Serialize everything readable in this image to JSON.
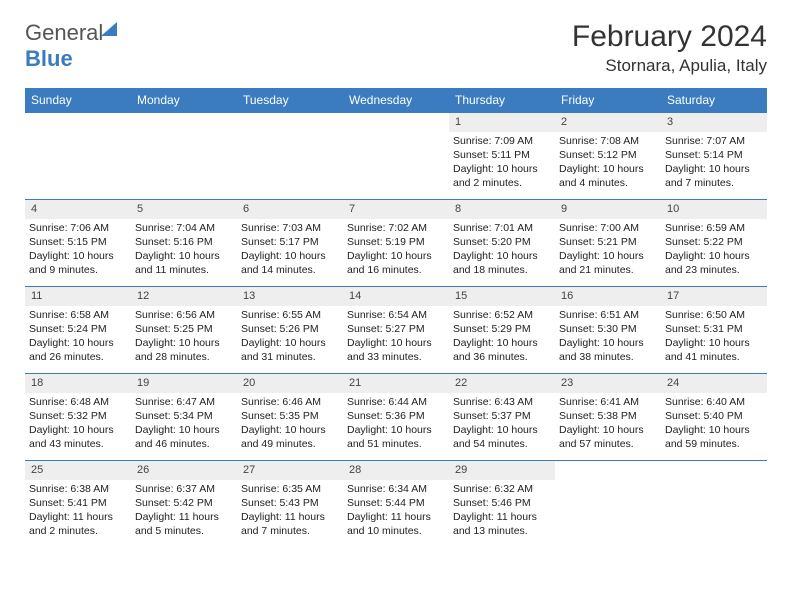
{
  "logo": {
    "text1": "General",
    "text2": "Blue"
  },
  "title": "February 2024",
  "location": "Stornara, Apulia, Italy",
  "colors": {
    "header_bg": "#3b7bbf",
    "header_text": "#ffffff",
    "row_border": "#3b7bbf",
    "daynum_bg": "#eeeeee",
    "body_text": "#222222"
  },
  "weekdays": [
    "Sunday",
    "Monday",
    "Tuesday",
    "Wednesday",
    "Thursday",
    "Friday",
    "Saturday"
  ],
  "weeks": [
    [
      null,
      null,
      null,
      null,
      {
        "n": "1",
        "sunrise": "7:09 AM",
        "sunset": "5:11 PM",
        "daylight": "10 hours and 2 minutes."
      },
      {
        "n": "2",
        "sunrise": "7:08 AM",
        "sunset": "5:12 PM",
        "daylight": "10 hours and 4 minutes."
      },
      {
        "n": "3",
        "sunrise": "7:07 AM",
        "sunset": "5:14 PM",
        "daylight": "10 hours and 7 minutes."
      }
    ],
    [
      {
        "n": "4",
        "sunrise": "7:06 AM",
        "sunset": "5:15 PM",
        "daylight": "10 hours and 9 minutes."
      },
      {
        "n": "5",
        "sunrise": "7:04 AM",
        "sunset": "5:16 PM",
        "daylight": "10 hours and 11 minutes."
      },
      {
        "n": "6",
        "sunrise": "7:03 AM",
        "sunset": "5:17 PM",
        "daylight": "10 hours and 14 minutes."
      },
      {
        "n": "7",
        "sunrise": "7:02 AM",
        "sunset": "5:19 PM",
        "daylight": "10 hours and 16 minutes."
      },
      {
        "n": "8",
        "sunrise": "7:01 AM",
        "sunset": "5:20 PM",
        "daylight": "10 hours and 18 minutes."
      },
      {
        "n": "9",
        "sunrise": "7:00 AM",
        "sunset": "5:21 PM",
        "daylight": "10 hours and 21 minutes."
      },
      {
        "n": "10",
        "sunrise": "6:59 AM",
        "sunset": "5:22 PM",
        "daylight": "10 hours and 23 minutes."
      }
    ],
    [
      {
        "n": "11",
        "sunrise": "6:58 AM",
        "sunset": "5:24 PM",
        "daylight": "10 hours and 26 minutes."
      },
      {
        "n": "12",
        "sunrise": "6:56 AM",
        "sunset": "5:25 PM",
        "daylight": "10 hours and 28 minutes."
      },
      {
        "n": "13",
        "sunrise": "6:55 AM",
        "sunset": "5:26 PM",
        "daylight": "10 hours and 31 minutes."
      },
      {
        "n": "14",
        "sunrise": "6:54 AM",
        "sunset": "5:27 PM",
        "daylight": "10 hours and 33 minutes."
      },
      {
        "n": "15",
        "sunrise": "6:52 AM",
        "sunset": "5:29 PM",
        "daylight": "10 hours and 36 minutes."
      },
      {
        "n": "16",
        "sunrise": "6:51 AM",
        "sunset": "5:30 PM",
        "daylight": "10 hours and 38 minutes."
      },
      {
        "n": "17",
        "sunrise": "6:50 AM",
        "sunset": "5:31 PM",
        "daylight": "10 hours and 41 minutes."
      }
    ],
    [
      {
        "n": "18",
        "sunrise": "6:48 AM",
        "sunset": "5:32 PM",
        "daylight": "10 hours and 43 minutes."
      },
      {
        "n": "19",
        "sunrise": "6:47 AM",
        "sunset": "5:34 PM",
        "daylight": "10 hours and 46 minutes."
      },
      {
        "n": "20",
        "sunrise": "6:46 AM",
        "sunset": "5:35 PM",
        "daylight": "10 hours and 49 minutes."
      },
      {
        "n": "21",
        "sunrise": "6:44 AM",
        "sunset": "5:36 PM",
        "daylight": "10 hours and 51 minutes."
      },
      {
        "n": "22",
        "sunrise": "6:43 AM",
        "sunset": "5:37 PM",
        "daylight": "10 hours and 54 minutes."
      },
      {
        "n": "23",
        "sunrise": "6:41 AM",
        "sunset": "5:38 PM",
        "daylight": "10 hours and 57 minutes."
      },
      {
        "n": "24",
        "sunrise": "6:40 AM",
        "sunset": "5:40 PM",
        "daylight": "10 hours and 59 minutes."
      }
    ],
    [
      {
        "n": "25",
        "sunrise": "6:38 AM",
        "sunset": "5:41 PM",
        "daylight": "11 hours and 2 minutes."
      },
      {
        "n": "26",
        "sunrise": "6:37 AM",
        "sunset": "5:42 PM",
        "daylight": "11 hours and 5 minutes."
      },
      {
        "n": "27",
        "sunrise": "6:35 AM",
        "sunset": "5:43 PM",
        "daylight": "11 hours and 7 minutes."
      },
      {
        "n": "28",
        "sunrise": "6:34 AM",
        "sunset": "5:44 PM",
        "daylight": "11 hours and 10 minutes."
      },
      {
        "n": "29",
        "sunrise": "6:32 AM",
        "sunset": "5:46 PM",
        "daylight": "11 hours and 13 minutes."
      },
      null,
      null
    ]
  ],
  "labels": {
    "sunrise": "Sunrise:",
    "sunset": "Sunset:",
    "daylight": "Daylight:"
  }
}
